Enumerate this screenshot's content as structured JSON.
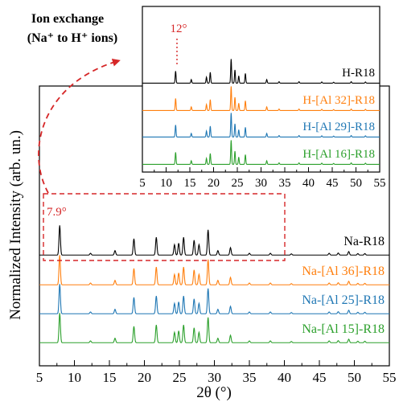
{
  "chart_data": [
    {
      "type": "line",
      "panel": "main",
      "xlabel": "2θ (°)",
      "ylabel": "Normalized Intensity (arb. un.)",
      "xlim": [
        5,
        55
      ],
      "xticks": [
        5,
        10,
        15,
        20,
        25,
        30,
        35,
        40,
        45,
        50,
        55
      ],
      "grid": false,
      "peak_annotation": "7.9°",
      "series": [
        {
          "name": "Na-R18",
          "color": "#000000",
          "peaks": [
            [
              7.9,
              1.0
            ],
            [
              12.3,
              0.06
            ],
            [
              15.8,
              0.15
            ],
            [
              18.5,
              0.55
            ],
            [
              21.7,
              0.6
            ],
            [
              24.3,
              0.35
            ],
            [
              24.9,
              0.4
            ],
            [
              25.6,
              0.6
            ],
            [
              27.1,
              0.5
            ],
            [
              27.8,
              0.35
            ],
            [
              29.1,
              0.85
            ],
            [
              30.5,
              0.15
            ],
            [
              32.3,
              0.25
            ],
            [
              35.0,
              0.06
            ],
            [
              38.0,
              0.06
            ],
            [
              41.0,
              0.04
            ],
            [
              46.4,
              0.06
            ],
            [
              47.7,
              0.07
            ],
            [
              49.2,
              0.12
            ],
            [
              50.5,
              0.05
            ],
            [
              51.5,
              0.05
            ]
          ]
        },
        {
          "name": "Na-[Al 36]-R18",
          "color": "#ff7f0e",
          "peaks": [
            [
              7.9,
              1.0
            ],
            [
              12.3,
              0.06
            ],
            [
              15.8,
              0.15
            ],
            [
              18.5,
              0.55
            ],
            [
              21.7,
              0.6
            ],
            [
              24.3,
              0.35
            ],
            [
              24.9,
              0.4
            ],
            [
              25.6,
              0.6
            ],
            [
              27.1,
              0.5
            ],
            [
              27.8,
              0.35
            ],
            [
              29.1,
              0.85
            ],
            [
              30.5,
              0.15
            ],
            [
              32.3,
              0.25
            ],
            [
              35.0,
              0.06
            ],
            [
              38.0,
              0.06
            ],
            [
              41.0,
              0.04
            ],
            [
              46.4,
              0.06
            ],
            [
              47.7,
              0.07
            ],
            [
              49.2,
              0.12
            ],
            [
              50.5,
              0.05
            ],
            [
              51.5,
              0.05
            ]
          ]
        },
        {
          "name": "Na-[Al 25]-R18",
          "color": "#1f77b4",
          "peaks": [
            [
              7.9,
              1.0
            ],
            [
              12.3,
              0.06
            ],
            [
              15.8,
              0.15
            ],
            [
              18.5,
              0.55
            ],
            [
              21.7,
              0.6
            ],
            [
              24.3,
              0.35
            ],
            [
              24.9,
              0.4
            ],
            [
              25.6,
              0.6
            ],
            [
              27.1,
              0.5
            ],
            [
              27.8,
              0.35
            ],
            [
              29.1,
              0.85
            ],
            [
              30.5,
              0.15
            ],
            [
              32.3,
              0.25
            ],
            [
              35.0,
              0.06
            ],
            [
              38.0,
              0.06
            ],
            [
              41.0,
              0.04
            ],
            [
              46.4,
              0.06
            ],
            [
              47.7,
              0.07
            ],
            [
              49.2,
              0.12
            ],
            [
              50.5,
              0.05
            ],
            [
              51.5,
              0.05
            ]
          ]
        },
        {
          "name": "Na-[Al 15]-R18",
          "color": "#2ca02c",
          "peaks": [
            [
              7.9,
              1.0
            ],
            [
              12.3,
              0.06
            ],
            [
              15.8,
              0.15
            ],
            [
              18.5,
              0.55
            ],
            [
              21.7,
              0.6
            ],
            [
              24.3,
              0.35
            ],
            [
              24.9,
              0.4
            ],
            [
              25.6,
              0.6
            ],
            [
              27.1,
              0.5
            ],
            [
              27.8,
              0.35
            ],
            [
              29.1,
              0.85
            ],
            [
              30.5,
              0.15
            ],
            [
              32.3,
              0.25
            ],
            [
              35.0,
              0.06
            ],
            [
              38.0,
              0.06
            ],
            [
              41.0,
              0.04
            ],
            [
              46.4,
              0.06
            ],
            [
              47.7,
              0.07
            ],
            [
              49.2,
              0.12
            ],
            [
              50.5,
              0.05
            ],
            [
              51.5,
              0.05
            ]
          ]
        }
      ]
    },
    {
      "type": "line",
      "panel": "inset",
      "xlim": [
        5,
        55
      ],
      "xticks": [
        5,
        10,
        15,
        20,
        25,
        30,
        35,
        40,
        45,
        50,
        55
      ],
      "grid": false,
      "peak_annotation": "12°",
      "series": [
        {
          "name": "H-R18",
          "color": "#000000",
          "peaks": [
            [
              12.0,
              0.5
            ],
            [
              15.3,
              0.15
            ],
            [
              18.5,
              0.25
            ],
            [
              19.3,
              0.45
            ],
            [
              23.7,
              1.0
            ],
            [
              24.5,
              0.55
            ],
            [
              25.3,
              0.3
            ],
            [
              26.7,
              0.4
            ],
            [
              31.2,
              0.15
            ],
            [
              33.8,
              0.06
            ],
            [
              38.0,
              0.06
            ],
            [
              42.8,
              0.05
            ],
            [
              45.3,
              0.04
            ],
            [
              49.0,
              0.06
            ],
            [
              52.0,
              0.05
            ]
          ]
        },
        {
          "name": "H-[Al 32]-R18",
          "color": "#ff7f0e",
          "peaks": [
            [
              12.0,
              0.5
            ],
            [
              15.3,
              0.15
            ],
            [
              18.5,
              0.25
            ],
            [
              19.3,
              0.45
            ],
            [
              23.7,
              1.0
            ],
            [
              24.5,
              0.55
            ],
            [
              25.3,
              0.3
            ],
            [
              26.7,
              0.4
            ],
            [
              31.2,
              0.15
            ],
            [
              33.8,
              0.06
            ],
            [
              38.0,
              0.06
            ],
            [
              42.8,
              0.05
            ],
            [
              45.3,
              0.04
            ],
            [
              49.0,
              0.06
            ],
            [
              52.0,
              0.05
            ]
          ]
        },
        {
          "name": "H-[Al 29]-R18",
          "color": "#1f77b4",
          "peaks": [
            [
              12.0,
              0.5
            ],
            [
              15.3,
              0.15
            ],
            [
              18.5,
              0.25
            ],
            [
              19.3,
              0.45
            ],
            [
              23.7,
              1.0
            ],
            [
              24.5,
              0.55
            ],
            [
              25.3,
              0.3
            ],
            [
              26.7,
              0.4
            ],
            [
              31.2,
              0.15
            ],
            [
              33.8,
              0.06
            ],
            [
              38.0,
              0.06
            ],
            [
              42.8,
              0.05
            ],
            [
              45.3,
              0.04
            ],
            [
              49.0,
              0.06
            ],
            [
              52.0,
              0.05
            ]
          ]
        },
        {
          "name": "H-[Al 16]-R18",
          "color": "#2ca02c",
          "peaks": [
            [
              12.0,
              0.5
            ],
            [
              15.3,
              0.15
            ],
            [
              18.5,
              0.25
            ],
            [
              19.3,
              0.45
            ],
            [
              23.7,
              1.0
            ],
            [
              24.5,
              0.55
            ],
            [
              25.3,
              0.3
            ],
            [
              26.7,
              0.4
            ],
            [
              31.2,
              0.15
            ],
            [
              33.8,
              0.06
            ],
            [
              38.0,
              0.06
            ],
            [
              42.8,
              0.05
            ],
            [
              45.3,
              0.04
            ],
            [
              49.0,
              0.06
            ],
            [
              52.0,
              0.05
            ]
          ]
        }
      ]
    }
  ],
  "annotation": {
    "ion_exchange_line1": "Ion exchange",
    "ion_exchange_line2": "(Na⁺ to H⁺ ions)",
    "arrow_color": "#d62728",
    "highlight_color": "#d62728"
  }
}
